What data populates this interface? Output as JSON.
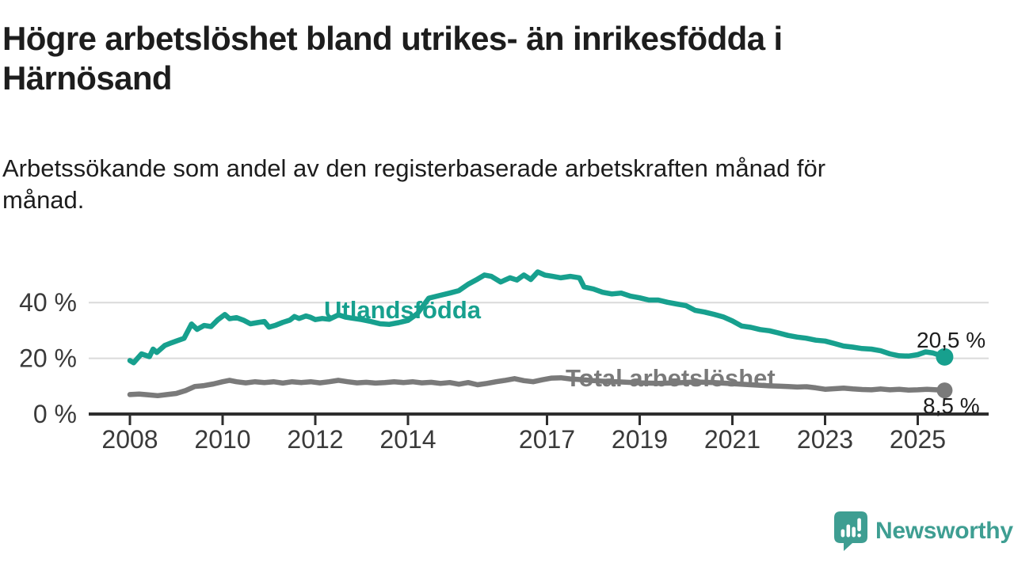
{
  "header": {
    "title_line1": "Högre arbetslöshet bland utrikes- än inrikesfödda i",
    "title_line2": "Härnösand",
    "subtitle_line1": "Arbetssökande som andel av den registerbaserade arbetskraften månad för",
    "subtitle_line2": "månad."
  },
  "footer": {
    "brand": "Newsworthy",
    "logo_icon": "bar-chart-speech-bubble"
  },
  "colors": {
    "accent_teal": "#17A08E",
    "series_gray": "#7A7A7A",
    "grid": "#DADADA",
    "axis": "#2E2E2E",
    "text_dark": "#1D1D1D",
    "tick_text": "#3A3A3A",
    "logo_teal": "#3E9E92"
  },
  "chart_data": {
    "type": "line",
    "title": "Högre arbetslöshet bland utrikes- än inrikesfödda i Härnösand",
    "subtitle": "Arbetssökande som andel av den registerbaserade arbetskraften månad för månad.",
    "grid": "horizontal-only",
    "legend_position": "inline-labels",
    "xlim": [
      2007.1,
      2026.5
    ],
    "ylim": [
      0,
      55
    ],
    "y_ticks": [
      {
        "value": 0,
        "label": "0 %"
      },
      {
        "value": 20,
        "label": "20 %"
      },
      {
        "value": 40,
        "label": "40 %"
      }
    ],
    "x_ticks": [
      {
        "value": 2008,
        "label": "2008"
      },
      {
        "value": 2010,
        "label": "2010"
      },
      {
        "value": 2012,
        "label": "2012"
      },
      {
        "value": 2014,
        "label": "2014"
      },
      {
        "value": 2017,
        "label": "2017"
      },
      {
        "value": 2019,
        "label": "2019"
      },
      {
        "value": 2021,
        "label": "2021"
      },
      {
        "value": 2023,
        "label": "2023"
      },
      {
        "value": 2025,
        "label": "2025"
      }
    ],
    "series": [
      {
        "name": "Utlandsfödda",
        "color": "#17A08E",
        "end_value": 20.5,
        "end_label": "20,5 %",
        "points": [
          [
            2008.0,
            19.2
          ],
          [
            2008.08,
            18.4
          ],
          [
            2008.25,
            21.6
          ],
          [
            2008.42,
            20.6
          ],
          [
            2008.5,
            23.3
          ],
          [
            2008.58,
            22.1
          ],
          [
            2008.75,
            24.6
          ],
          [
            2008.9,
            25.6
          ],
          [
            2009.0,
            26.2
          ],
          [
            2009.17,
            27.2
          ],
          [
            2009.33,
            32.3
          ],
          [
            2009.45,
            30.4
          ],
          [
            2009.6,
            31.8
          ],
          [
            2009.75,
            31.4
          ],
          [
            2009.9,
            33.9
          ],
          [
            2010.05,
            35.7
          ],
          [
            2010.15,
            34.2
          ],
          [
            2010.3,
            34.6
          ],
          [
            2010.45,
            33.7
          ],
          [
            2010.6,
            32.4
          ],
          [
            2010.75,
            32.8
          ],
          [
            2010.9,
            33.2
          ],
          [
            2011.0,
            31.2
          ],
          [
            2011.15,
            31.9
          ],
          [
            2011.3,
            32.9
          ],
          [
            2011.45,
            33.7
          ],
          [
            2011.55,
            35.0
          ],
          [
            2011.65,
            34.3
          ],
          [
            2011.8,
            35.2
          ],
          [
            2011.9,
            34.7
          ],
          [
            2012.0,
            33.9
          ],
          [
            2012.15,
            34.3
          ],
          [
            2012.3,
            34.0
          ],
          [
            2012.5,
            35.6
          ],
          [
            2012.65,
            34.8
          ],
          [
            2012.8,
            34.4
          ],
          [
            2013.0,
            33.9
          ],
          [
            2013.2,
            33.2
          ],
          [
            2013.4,
            32.4
          ],
          [
            2013.6,
            32.2
          ],
          [
            2013.8,
            32.8
          ],
          [
            2014.0,
            33.6
          ],
          [
            2014.2,
            36.0
          ],
          [
            2014.45,
            41.6
          ],
          [
            2014.7,
            42.6
          ],
          [
            2014.9,
            43.4
          ],
          [
            2015.1,
            44.3
          ],
          [
            2015.3,
            46.6
          ],
          [
            2015.5,
            48.4
          ],
          [
            2015.65,
            49.9
          ],
          [
            2015.8,
            49.4
          ],
          [
            2016.0,
            47.4
          ],
          [
            2016.2,
            48.9
          ],
          [
            2016.35,
            48.1
          ],
          [
            2016.5,
            49.9
          ],
          [
            2016.65,
            48.3
          ],
          [
            2016.8,
            51.0
          ],
          [
            2016.95,
            49.9
          ],
          [
            2017.1,
            49.5
          ],
          [
            2017.3,
            48.9
          ],
          [
            2017.5,
            49.4
          ],
          [
            2017.7,
            48.9
          ],
          [
            2017.8,
            45.6
          ],
          [
            2018.0,
            44.9
          ],
          [
            2018.2,
            43.7
          ],
          [
            2018.4,
            43.1
          ],
          [
            2018.6,
            43.4
          ],
          [
            2018.8,
            42.3
          ],
          [
            2019.0,
            41.7
          ],
          [
            2019.2,
            40.9
          ],
          [
            2019.4,
            40.9
          ],
          [
            2019.6,
            40.1
          ],
          [
            2019.8,
            39.5
          ],
          [
            2020.0,
            38.9
          ],
          [
            2020.2,
            37.2
          ],
          [
            2020.4,
            36.6
          ],
          [
            2020.6,
            35.8
          ],
          [
            2020.8,
            34.9
          ],
          [
            2021.0,
            33.4
          ],
          [
            2021.2,
            31.6
          ],
          [
            2021.4,
            31.1
          ],
          [
            2021.6,
            30.3
          ],
          [
            2021.8,
            29.9
          ],
          [
            2022.0,
            29.1
          ],
          [
            2022.2,
            28.2
          ],
          [
            2022.4,
            27.6
          ],
          [
            2022.6,
            27.2
          ],
          [
            2022.8,
            26.5
          ],
          [
            2023.0,
            26.2
          ],
          [
            2023.2,
            25.3
          ],
          [
            2023.4,
            24.4
          ],
          [
            2023.6,
            24.0
          ],
          [
            2023.8,
            23.5
          ],
          [
            2024.0,
            23.3
          ],
          [
            2024.2,
            22.7
          ],
          [
            2024.4,
            21.6
          ],
          [
            2024.6,
            20.9
          ],
          [
            2024.8,
            20.8
          ],
          [
            2025.0,
            21.3
          ],
          [
            2025.17,
            22.3
          ],
          [
            2025.33,
            21.9
          ],
          [
            2025.58,
            20.5
          ]
        ]
      },
      {
        "name": "Total arbetslöshet",
        "color": "#7A7A7A",
        "end_value": 8.5,
        "end_label": "8,5 %",
        "points": [
          [
            2008.0,
            7.0
          ],
          [
            2008.2,
            7.2
          ],
          [
            2008.4,
            6.9
          ],
          [
            2008.6,
            6.6
          ],
          [
            2008.8,
            7.0
          ],
          [
            2009.0,
            7.4
          ],
          [
            2009.2,
            8.4
          ],
          [
            2009.4,
            9.9
          ],
          [
            2009.6,
            10.2
          ],
          [
            2009.8,
            10.8
          ],
          [
            2010.0,
            11.6
          ],
          [
            2010.15,
            12.1
          ],
          [
            2010.3,
            11.6
          ],
          [
            2010.5,
            11.2
          ],
          [
            2010.7,
            11.6
          ],
          [
            2010.9,
            11.3
          ],
          [
            2011.1,
            11.6
          ],
          [
            2011.3,
            11.1
          ],
          [
            2011.5,
            11.6
          ],
          [
            2011.7,
            11.3
          ],
          [
            2011.9,
            11.6
          ],
          [
            2012.1,
            11.2
          ],
          [
            2012.3,
            11.6
          ],
          [
            2012.5,
            12.1
          ],
          [
            2012.7,
            11.6
          ],
          [
            2012.9,
            11.2
          ],
          [
            2013.1,
            11.4
          ],
          [
            2013.3,
            11.1
          ],
          [
            2013.5,
            11.3
          ],
          [
            2013.7,
            11.6
          ],
          [
            2013.9,
            11.3
          ],
          [
            2014.1,
            11.6
          ],
          [
            2014.3,
            11.2
          ],
          [
            2014.5,
            11.4
          ],
          [
            2014.7,
            11.0
          ],
          [
            2014.9,
            11.3
          ],
          [
            2015.1,
            10.7
          ],
          [
            2015.3,
            11.3
          ],
          [
            2015.5,
            10.5
          ],
          [
            2015.7,
            11.0
          ],
          [
            2015.9,
            11.6
          ],
          [
            2016.1,
            12.1
          ],
          [
            2016.3,
            12.7
          ],
          [
            2016.5,
            12.0
          ],
          [
            2016.7,
            11.6
          ],
          [
            2016.9,
            12.3
          ],
          [
            2017.1,
            12.9
          ],
          [
            2017.3,
            13.0
          ],
          [
            2017.5,
            12.6
          ],
          [
            2017.7,
            12.4
          ],
          [
            2018.0,
            12.0
          ],
          [
            2018.3,
            11.7
          ],
          [
            2018.6,
            11.5
          ],
          [
            2019.0,
            11.2
          ],
          [
            2019.4,
            11.0
          ],
          [
            2019.8,
            11.2
          ],
          [
            2020.2,
            11.5
          ],
          [
            2020.6,
            11.3
          ],
          [
            2021.0,
            10.9
          ],
          [
            2021.4,
            10.5
          ],
          [
            2021.8,
            10.1
          ],
          [
            2022.0,
            10.0
          ],
          [
            2022.2,
            9.9
          ],
          [
            2022.4,
            9.7
          ],
          [
            2022.6,
            9.8
          ],
          [
            2022.8,
            9.4
          ],
          [
            2023.0,
            8.9
          ],
          [
            2023.2,
            9.1
          ],
          [
            2023.4,
            9.3
          ],
          [
            2023.6,
            9.0
          ],
          [
            2023.8,
            8.8
          ],
          [
            2024.0,
            8.7
          ],
          [
            2024.2,
            9.0
          ],
          [
            2024.4,
            8.7
          ],
          [
            2024.6,
            8.9
          ],
          [
            2024.8,
            8.6
          ],
          [
            2025.0,
            8.7
          ],
          [
            2025.2,
            8.9
          ],
          [
            2025.4,
            8.7
          ],
          [
            2025.58,
            8.5
          ]
        ]
      }
    ]
  }
}
